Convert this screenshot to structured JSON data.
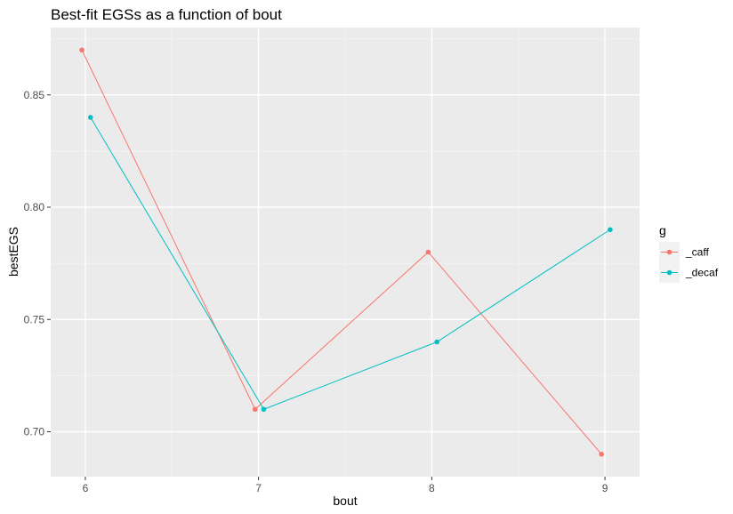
{
  "chart_data": {
    "type": "line",
    "title": "Best-fit EGSs as a function of bout",
    "xlabel": "bout",
    "ylabel": "bestEGS",
    "x_ticks": [
      "6",
      "7",
      "8",
      "9"
    ],
    "y_ticks": [
      "0.70",
      "0.75",
      "0.80",
      "0.85"
    ],
    "xlim": [
      5.8,
      9.2
    ],
    "ylim": [
      0.68,
      0.88
    ],
    "grid": true,
    "legend": {
      "title": "g",
      "position": "right"
    },
    "series": [
      {
        "name": "_caff",
        "color": "#F8766D",
        "x": [
          5.98,
          6.98,
          7.98,
          8.98
        ],
        "y": [
          0.87,
          0.71,
          0.78,
          0.69
        ]
      },
      {
        "name": "_decaf",
        "color": "#00BFC4",
        "x": [
          6.03,
          7.03,
          8.03,
          9.03
        ],
        "y": [
          0.84,
          0.71,
          0.74,
          0.79
        ]
      }
    ]
  }
}
